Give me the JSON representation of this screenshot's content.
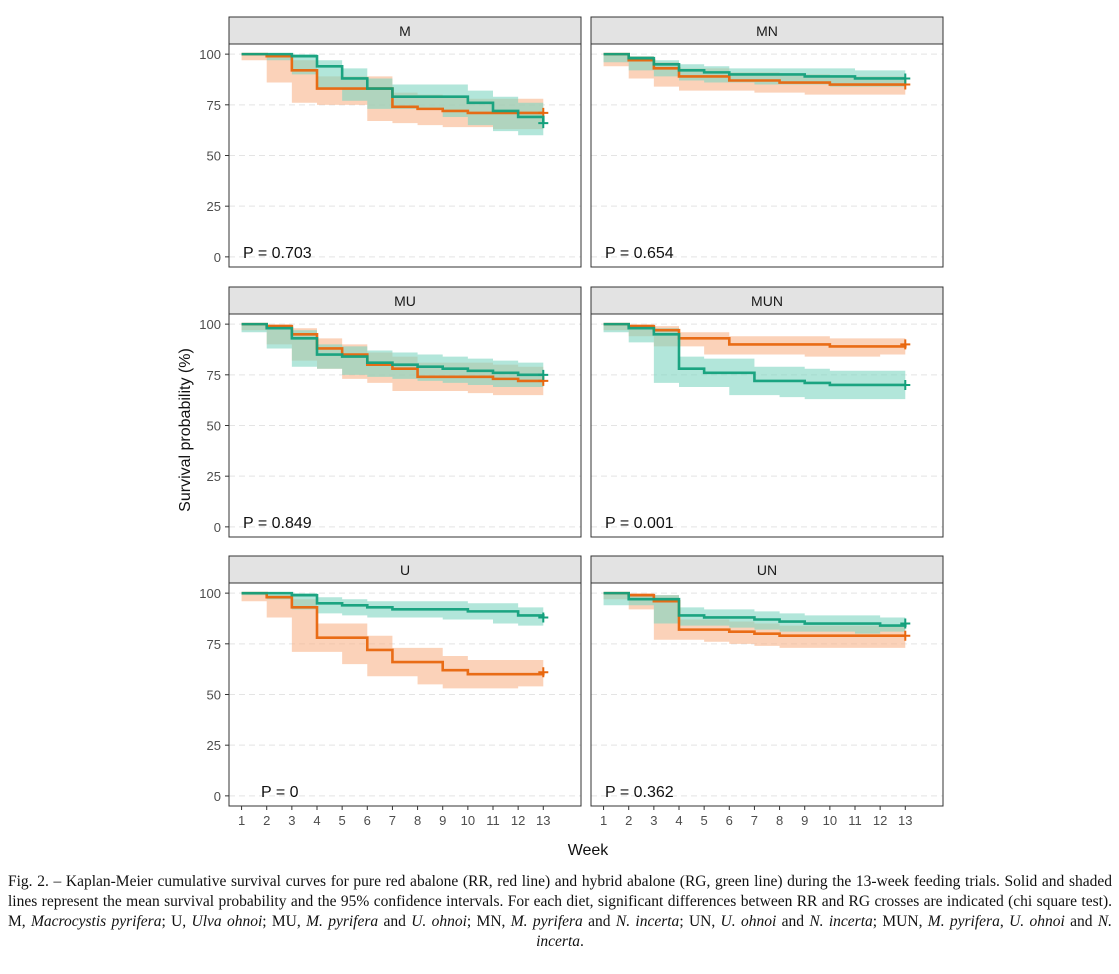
{
  "figure": {
    "ylabel": "Survival probability (%)",
    "xlabel": "Week",
    "colors": {
      "RR": "#e8660d",
      "RG": "#13a07c",
      "RR_band": "#f9b48a",
      "RG_band": "#7fd6c2"
    }
  },
  "caption": [
    {
      "t": "Fig. 2. – Kaplan-Meier cumulative survival curves for pure red abalone (RR, red line) and hybrid abalone (RG, green line) during the 13-week feeding trials. Solid and shaded lines represent the mean survival probability and the 95% confidence intervals. For each diet, significant differences between RR and RG crosses are indicated (chi square test). M, "
    },
    {
      "t": "Macrocystis pyrifera",
      "i": true
    },
    {
      "t": "; U, "
    },
    {
      "t": "Ulva ohnoi",
      "i": true
    },
    {
      "t": "; MU, "
    },
    {
      "t": "M. pyrifera",
      "i": true
    },
    {
      "t": " and "
    },
    {
      "t": "U. ohnoi",
      "i": true
    },
    {
      "t": "; MN, "
    },
    {
      "t": "M. pyrifera",
      "i": true
    },
    {
      "t": " and "
    },
    {
      "t": "N. incerta",
      "i": true
    },
    {
      "t": "; UN, "
    },
    {
      "t": "U. ohnoi",
      "i": true
    },
    {
      "t": " and "
    },
    {
      "t": "N. incerta",
      "i": true
    },
    {
      "t": "; MUN, "
    },
    {
      "t": "M. pyrifera",
      "i": true
    },
    {
      "t": ", "
    },
    {
      "t": "U. ohnoi",
      "i": true
    },
    {
      "t": " and "
    },
    {
      "t": "N. incerta",
      "i": true
    },
    {
      "t": "."
    }
  ],
  "chart_data": {
    "type": "line",
    "step": true,
    "xlabel": "Week",
    "ylabel": "Survival probability (%)",
    "xlim": [
      0.5,
      14.5
    ],
    "ylim": [
      -5,
      105
    ],
    "xticks": [
      1,
      2,
      3,
      4,
      5,
      6,
      7,
      8,
      9,
      10,
      11,
      12,
      13
    ],
    "yticks": [
      0,
      25,
      50,
      75,
      100
    ],
    "grid": true,
    "panels": [
      {
        "title": "M",
        "p_label": "P = 0.703",
        "series": [
          {
            "x": [
              1,
              2,
              3,
              4,
              6,
              7,
              8,
              9,
              10,
              11,
              12,
              13
            ],
            "y": [
              100,
              99,
              92,
              83,
              83,
              74,
              73,
              72,
              71,
              71,
              71,
              71
            ],
            "lo": [
              100,
              97,
              86,
              76,
              75,
              67,
              66,
              65,
              64,
              64,
              63,
              63
            ],
            "hi": [
              100,
              100,
              97,
              89,
              89,
              81,
              80,
              79,
              78,
              78,
              78,
              78
            ]
          },
          {
            "x": [
              1,
              2,
              3,
              4,
              5,
              6,
              7,
              9,
              10,
              11,
              12,
              13
            ],
            "y": [
              100,
              100,
              99,
              94,
              88,
              83,
              79,
              79,
              76,
              72,
              69,
              66
            ],
            "lo": [
              100,
              100,
              97,
              90,
              83,
              77,
              73,
              73,
              69,
              65,
              62,
              60
            ],
            "hi": [
              100,
              100,
              100,
              97,
              93,
              88,
              85,
              85,
              82,
              79,
              76,
              73
            ]
          }
        ]
      },
      {
        "title": "MN",
        "p_label": "P = 0.654",
        "series": [
          {
            "x": [
              1,
              2,
              3,
              4,
              6,
              7,
              8,
              9,
              10,
              11,
              12,
              13
            ],
            "y": [
              100,
              97,
              93,
              89,
              87,
              87,
              86,
              86,
              85,
              85,
              85,
              85
            ],
            "lo": [
              100,
              94,
              88,
              84,
              82,
              82,
              81,
              81,
              80,
              80,
              80,
              80
            ],
            "hi": [
              100,
              99,
              96,
              93,
              91,
              91,
              90,
              90,
              89,
              89,
              89,
              89
            ]
          },
          {
            "x": [
              1,
              2,
              3,
              4,
              5,
              6,
              7,
              9,
              10,
              11,
              12,
              13
            ],
            "y": [
              100,
              98,
              95,
              92,
              91,
              90,
              90,
              89,
              89,
              88,
              88,
              88
            ],
            "lo": [
              100,
              96,
              92,
              89,
              87,
              86,
              86,
              85,
              85,
              84,
              84,
              84
            ],
            "hi": [
              100,
              99,
              97,
              95,
              94,
              93,
              93,
              93,
              93,
              92,
              92,
              92
            ]
          }
        ]
      },
      {
        "title": "MU",
        "p_label": "P = 0.849",
        "series": [
          {
            "x": [
              1,
              2,
              3,
              4,
              5,
              6,
              7,
              8,
              9,
              10,
              11,
              12,
              13
            ],
            "y": [
              100,
              99,
              95,
              88,
              85,
              80,
              78,
              74,
              74,
              74,
              73,
              72,
              72
            ],
            "lo": [
              100,
              97,
              90,
              82,
              78,
              73,
              71,
              67,
              67,
              67,
              66,
              65,
              65
            ],
            "hi": [
              100,
              100,
              98,
              93,
              90,
              86,
              84,
              81,
              81,
              81,
              80,
              79,
              79
            ]
          },
          {
            "x": [
              1,
              2,
              3,
              4,
              5,
              6,
              7,
              8,
              9,
              10,
              11,
              12,
              13
            ],
            "y": [
              100,
              98,
              93,
              85,
              84,
              81,
              80,
              79,
              78,
              77,
              76,
              75,
              75
            ],
            "lo": [
              100,
              96,
              88,
              79,
              78,
              75,
              74,
              73,
              72,
              71,
              70,
              69,
              69
            ],
            "hi": [
              100,
              99,
              97,
              90,
              89,
              87,
              86,
              85,
              84,
              83,
              82,
              81,
              81
            ]
          }
        ]
      },
      {
        "title": "MUN",
        "p_label": "P = 0.001",
        "series": [
          {
            "x": [
              1,
              2,
              3,
              4,
              5,
              6,
              7,
              8,
              9,
              10,
              11,
              12,
              13
            ],
            "y": [
              100,
              99,
              97,
              93,
              93,
              90,
              90,
              90,
              90,
              89,
              89,
              89,
              90
            ],
            "lo": [
              100,
              97,
              94,
              89,
              89,
              85,
              85,
              85,
              85,
              84,
              84,
              84,
              85
            ],
            "hi": [
              100,
              100,
              99,
              96,
              96,
              94,
              94,
              94,
              94,
              93,
              93,
              93,
              94
            ]
          },
          {
            "x": [
              1,
              2,
              3,
              4,
              5,
              6,
              7,
              8,
              9,
              10,
              11,
              12,
              13
            ],
            "y": [
              100,
              98,
              95,
              78,
              76,
              76,
              72,
              72,
              71,
              70,
              70,
              70,
              70
            ],
            "lo": [
              100,
              96,
              91,
              71,
              69,
              69,
              65,
              65,
              64,
              63,
              63,
              63,
              63
            ],
            "hi": [
              100,
              99,
              98,
              84,
              83,
              83,
              79,
              79,
              78,
              77,
              77,
              77,
              77
            ]
          }
        ]
      },
      {
        "title": "U",
        "p_label": "P = 0",
        "series": [
          {
            "x": [
              1,
              2,
              3,
              4,
              5,
              6,
              7,
              8,
              9,
              10,
              11,
              12,
              13
            ],
            "y": [
              100,
              98,
              93,
              78,
              78,
              72,
              66,
              66,
              62,
              60,
              60,
              60,
              61
            ],
            "lo": [
              100,
              96,
              88,
              71,
              71,
              65,
              59,
              59,
              55,
              53,
              53,
              53,
              54
            ],
            "hi": [
              100,
              99,
              97,
              85,
              85,
              79,
              73,
              73,
              69,
              67,
              67,
              67,
              68
            ]
          },
          {
            "x": [
              1,
              2,
              3,
              4,
              5,
              6,
              7,
              8,
              9,
              10,
              11,
              12,
              13
            ],
            "y": [
              100,
              100,
              99,
              95,
              94,
              93,
              92,
              92,
              92,
              91,
              91,
              89,
              88
            ],
            "lo": [
              100,
              99,
              97,
              92,
              90,
              89,
              88,
              88,
              88,
              87,
              87,
              85,
              84
            ],
            "hi": [
              100,
              100,
              100,
              98,
              97,
              96,
              96,
              96,
              96,
              95,
              95,
              93,
              92
            ]
          }
        ]
      },
      {
        "title": "UN",
        "p_label": "P = 0.362",
        "series": [
          {
            "x": [
              1,
              2,
              3,
              4,
              5,
              6,
              7,
              8,
              9,
              10,
              11,
              12,
              13
            ],
            "y": [
              100,
              99,
              96,
              82,
              82,
              81,
              80,
              79,
              79,
              79,
              79,
              79,
              79
            ],
            "lo": [
              100,
              97,
              92,
              77,
              77,
              76,
              75,
              74,
              73,
              73,
              73,
              73,
              73
            ],
            "hi": [
              100,
              100,
              99,
              87,
              87,
              86,
              85,
              84,
              84,
              84,
              84,
              84,
              84
            ]
          },
          {
            "x": [
              1,
              2,
              3,
              4,
              5,
              6,
              7,
              8,
              9,
              10,
              11,
              12,
              13
            ],
            "y": [
              100,
              97,
              97,
              89,
              88,
              88,
              87,
              86,
              85,
              85,
              85,
              84,
              85
            ],
            "lo": [
              100,
              94,
              94,
              85,
              84,
              84,
              83,
              82,
              81,
              81,
              81,
              80,
              81
            ],
            "hi": [
              100,
              99,
              99,
              93,
              92,
              92,
              91,
              90,
              89,
              89,
              89,
              88,
              89
            ]
          }
        ]
      }
    ]
  }
}
